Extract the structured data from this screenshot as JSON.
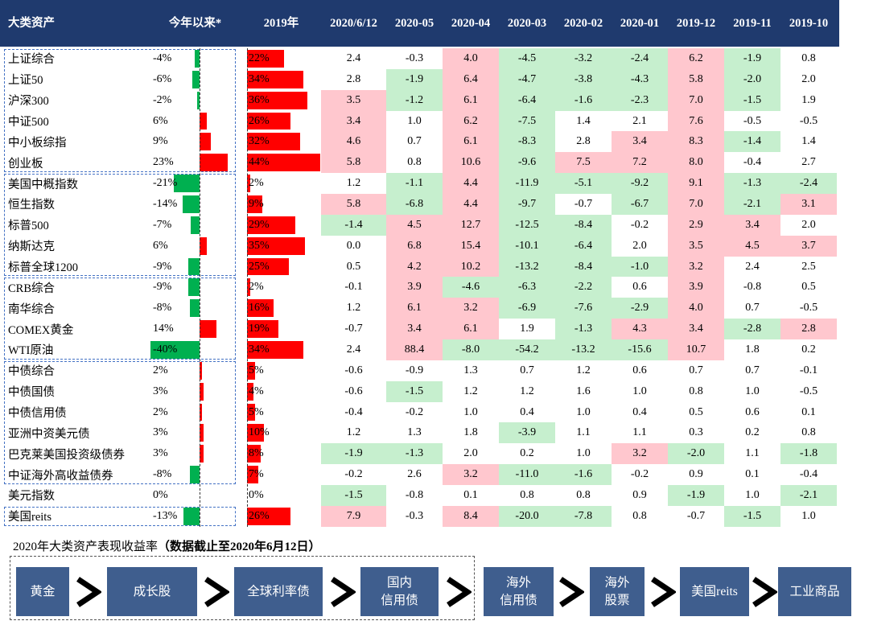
{
  "colors": {
    "header_bg": "#1f3a6e",
    "header_text": "#ffffff",
    "positive_shade": "#ffc7ce",
    "negative_shade": "#c6efce",
    "positive_bar": "#ff0000",
    "negative_bar": "#00b050",
    "group_border": "#4472c4",
    "flow_box": "#3f5e8e"
  },
  "chart_data": {
    "type": "table",
    "columns": [
      "大类资产",
      "今年以来*",
      "2019年",
      "2020/6/12",
      "2020-05",
      "2020-04",
      "2020-03",
      "2020-02",
      "2020-01",
      "2019-12",
      "2019-11",
      "2019-10"
    ],
    "rows": [
      {
        "asset": "上证综合",
        "ytd": "-4%",
        "y2019": "22%",
        "monthly": [
          "2.4",
          "-0.3",
          "4.0",
          "-4.5",
          "-3.2",
          "-2.4",
          "6.2",
          "-1.9",
          "0.8"
        ],
        "shade": [
          "",
          "",
          "pink",
          "green",
          "green",
          "green",
          "pink",
          "green",
          ""
        ]
      },
      {
        "asset": "上证50",
        "ytd": "-6%",
        "y2019": "34%",
        "monthly": [
          "2.8",
          "-1.9",
          "6.4",
          "-4.7",
          "-3.8",
          "-4.3",
          "5.8",
          "-2.0",
          "2.0"
        ],
        "shade": [
          "",
          "green",
          "pink",
          "green",
          "green",
          "green",
          "pink",
          "green",
          ""
        ]
      },
      {
        "asset": "沪深300",
        "ytd": "-2%",
        "y2019": "36%",
        "monthly": [
          "3.5",
          "-1.2",
          "6.1",
          "-6.4",
          "-1.6",
          "-2.3",
          "7.0",
          "-1.5",
          "1.9"
        ],
        "shade": [
          "pink",
          "green",
          "pink",
          "green",
          "green",
          "green",
          "pink",
          "green",
          ""
        ]
      },
      {
        "asset": "中证500",
        "ytd": "6%",
        "y2019": "26%",
        "monthly": [
          "3.4",
          "1.0",
          "6.2",
          "-7.5",
          "1.4",
          "2.1",
          "7.6",
          "-0.5",
          "-0.5"
        ],
        "shade": [
          "pink",
          "",
          "pink",
          "green",
          "",
          "",
          "pink",
          "",
          ""
        ]
      },
      {
        "asset": "中小板综指",
        "ytd": "9%",
        "y2019": "32%",
        "monthly": [
          "4.6",
          "0.7",
          "6.1",
          "-8.3",
          "2.8",
          "3.4",
          "8.3",
          "-1.4",
          "1.4"
        ],
        "shade": [
          "pink",
          "",
          "pink",
          "green",
          "",
          "pink",
          "pink",
          "green",
          ""
        ]
      },
      {
        "asset": "创业板",
        "ytd": "23%",
        "y2019": "44%",
        "monthly": [
          "5.8",
          "0.8",
          "10.6",
          "-9.6",
          "7.5",
          "7.2",
          "8.0",
          "-0.4",
          "2.7"
        ],
        "shade": [
          "pink",
          "",
          "pink",
          "green",
          "pink",
          "pink",
          "pink",
          "",
          ""
        ]
      },
      {
        "asset": "美国中概指数",
        "ytd": "-21%",
        "y2019": "2%",
        "monthly": [
          "1.2",
          "-1.1",
          "4.4",
          "-11.9",
          "-5.1",
          "-9.2",
          "9.1",
          "-1.3",
          "-2.4"
        ],
        "shade": [
          "",
          "green",
          "pink",
          "green",
          "green",
          "green",
          "pink",
          "green",
          "green"
        ]
      },
      {
        "asset": "恒生指数",
        "ytd": "-14%",
        "y2019": "9%",
        "monthly": [
          "5.8",
          "-6.8",
          "4.4",
          "-9.7",
          "-0.7",
          "-6.7",
          "7.0",
          "-2.1",
          "3.1"
        ],
        "shade": [
          "pink",
          "green",
          "pink",
          "green",
          "",
          "green",
          "pink",
          "green",
          "pink"
        ]
      },
      {
        "asset": "标普500",
        "ytd": "-7%",
        "y2019": "29%",
        "monthly": [
          "-1.4",
          "4.5",
          "12.7",
          "-12.5",
          "-8.4",
          "-0.2",
          "2.9",
          "3.4",
          "2.0"
        ],
        "shade": [
          "green",
          "pink",
          "pink",
          "green",
          "green",
          "",
          "pink",
          "pink",
          ""
        ]
      },
      {
        "asset": "纳斯达克",
        "ytd": "6%",
        "y2019": "35%",
        "monthly": [
          "0.0",
          "6.8",
          "15.4",
          "-10.1",
          "-6.4",
          "2.0",
          "3.5",
          "4.5",
          "3.7"
        ],
        "shade": [
          "",
          "pink",
          "pink",
          "green",
          "green",
          "",
          "pink",
          "pink",
          "pink"
        ]
      },
      {
        "asset": "标普全球1200",
        "ytd": "-9%",
        "y2019": "25%",
        "monthly": [
          "0.5",
          "4.2",
          "10.2",
          "-13.2",
          "-8.4",
          "-1.0",
          "3.2",
          "2.4",
          "2.5"
        ],
        "shade": [
          "",
          "pink",
          "pink",
          "green",
          "green",
          "green",
          "pink",
          "",
          ""
        ]
      },
      {
        "asset": "CRB综合",
        "ytd": "-9%",
        "y2019": "2%",
        "monthly": [
          "-0.1",
          "3.9",
          "-4.6",
          "-6.3",
          "-2.2",
          "0.6",
          "3.9",
          "-0.8",
          "0.5"
        ],
        "shade": [
          "",
          "pink",
          "green",
          "green",
          "green",
          "",
          "pink",
          "",
          ""
        ]
      },
      {
        "asset": "南华综合",
        "ytd": "-8%",
        "y2019": "16%",
        "monthly": [
          "1.2",
          "6.1",
          "3.2",
          "-6.9",
          "-7.6",
          "-2.9",
          "4.0",
          "0.7",
          "-0.5"
        ],
        "shade": [
          "",
          "pink",
          "pink",
          "green",
          "green",
          "green",
          "pink",
          "",
          ""
        ]
      },
      {
        "asset": "COMEX黄金",
        "ytd": "14%",
        "y2019": "19%",
        "monthly": [
          "-0.7",
          "3.4",
          "6.1",
          "1.9",
          "-1.3",
          "4.3",
          "3.4",
          "-2.8",
          "2.8"
        ],
        "shade": [
          "",
          "pink",
          "pink",
          "",
          "green",
          "pink",
          "pink",
          "green",
          "pink"
        ]
      },
      {
        "asset": "WTI原油",
        "ytd": "-40%",
        "y2019": "34%",
        "monthly": [
          "2.4",
          "88.4",
          "-8.0",
          "-54.2",
          "-13.2",
          "-15.6",
          "10.7",
          "1.8",
          "0.2"
        ],
        "shade": [
          "",
          "pink",
          "green",
          "green",
          "green",
          "green",
          "pink",
          "",
          ""
        ]
      },
      {
        "asset": "中债综合",
        "ytd": "2%",
        "y2019": "5%",
        "monthly": [
          "-0.6",
          "-0.9",
          "1.3",
          "0.7",
          "1.2",
          "0.6",
          "0.7",
          "0.7",
          "-0.1"
        ],
        "shade": [
          "",
          "",
          "",
          "",
          "",
          "",
          "",
          "",
          ""
        ]
      },
      {
        "asset": "中债国债",
        "ytd": "3%",
        "y2019": "4%",
        "monthly": [
          "-0.6",
          "-1.5",
          "1.2",
          "1.2",
          "1.6",
          "1.0",
          "0.8",
          "1.0",
          "-0.5"
        ],
        "shade": [
          "",
          "green",
          "",
          "",
          "",
          "",
          "",
          "",
          ""
        ]
      },
      {
        "asset": "中债信用债",
        "ytd": "2%",
        "y2019": "5%",
        "monthly": [
          "-0.4",
          "-0.2",
          "1.0",
          "0.4",
          "1.0",
          "0.4",
          "0.5",
          "0.6",
          "0.1"
        ],
        "shade": [
          "",
          "",
          "",
          "",
          "",
          "",
          "",
          "",
          ""
        ]
      },
      {
        "asset": "亚洲中资美元债",
        "ytd": "3%",
        "y2019": "10%",
        "monthly": [
          "1.2",
          "1.3",
          "1.8",
          "-3.9",
          "1.1",
          "1.1",
          "0.3",
          "0.2",
          "0.8"
        ],
        "shade": [
          "",
          "",
          "",
          "green",
          "",
          "",
          "",
          "",
          ""
        ]
      },
      {
        "asset": "巴克莱美国投资级债券",
        "ytd": "3%",
        "y2019": "8%",
        "monthly": [
          "-1.9",
          "-1.3",
          "2.0",
          "0.2",
          "1.0",
          "3.2",
          "-2.0",
          "1.1",
          "-1.8"
        ],
        "shade": [
          "green",
          "green",
          "",
          "",
          "",
          "pink",
          "green",
          "",
          "green"
        ]
      },
      {
        "asset": "中证海外高收益债券",
        "ytd": "-8%",
        "y2019": "7%",
        "monthly": [
          "-0.2",
          "2.6",
          "3.2",
          "-11.0",
          "-1.6",
          "-0.2",
          "0.9",
          "0.1",
          "-0.4"
        ],
        "shade": [
          "",
          "",
          "pink",
          "green",
          "green",
          "",
          "",
          "",
          ""
        ]
      },
      {
        "asset": "美元指数",
        "ytd": "0%",
        "y2019": "0%",
        "monthly": [
          "-1.5",
          "-0.8",
          "0.1",
          "0.8",
          "0.8",
          "0.9",
          "-1.9",
          "1.0",
          "-2.1"
        ],
        "shade": [
          "green",
          "",
          "",
          "",
          "",
          "",
          "green",
          "",
          "green"
        ]
      },
      {
        "asset": "美国reits",
        "ytd": "-13%",
        "y2019": "26%",
        "monthly": [
          "7.9",
          "-0.3",
          "8.4",
          "-20.0",
          "-7.8",
          "0.8",
          "-0.7",
          "-1.5",
          "1.0"
        ],
        "shade": [
          "pink",
          "",
          "pink",
          "green",
          "green",
          "",
          "",
          "green",
          ""
        ]
      }
    ]
  },
  "caption": {
    "title": "2020年大类资产表现收益率",
    "note": "（数据截止至2020年6月12日）"
  },
  "ranking_flow": {
    "separator_icon": "chevron-right",
    "steps": [
      "黄金",
      "成长股",
      "全球利率债",
      "国内\n信用债",
      "海外\n信用债",
      "海外\n股票",
      "美国reits",
      "工业商品"
    ]
  }
}
